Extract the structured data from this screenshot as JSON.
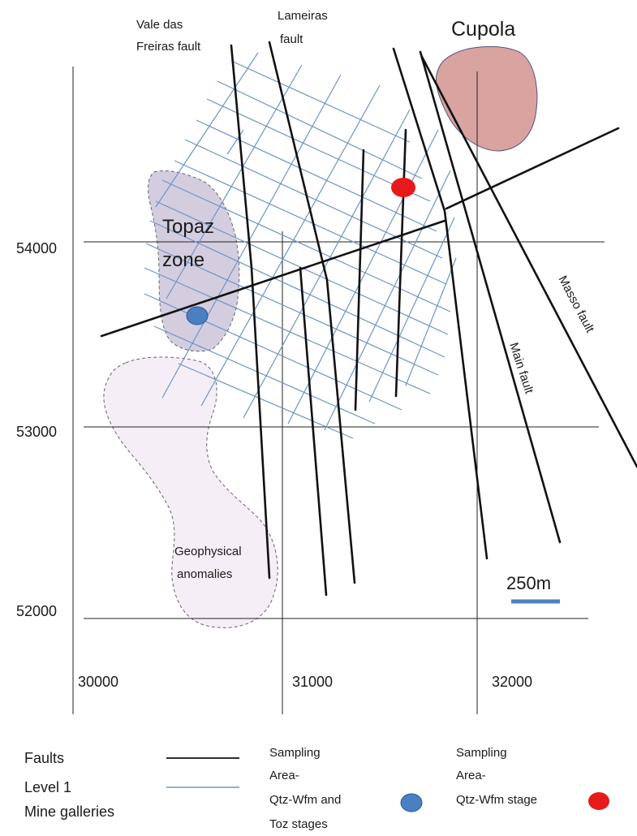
{
  "map": {
    "grid": {
      "northings": [
        "54000",
        "53000",
        "52000"
      ],
      "eastings": [
        "30000",
        "31000",
        "32000"
      ]
    },
    "zones": {
      "topaz_line1": "Topaz",
      "topaz_line2": "zone",
      "cupola": "Cupola",
      "geophysical_line1": "Geophysical",
      "geophysical_line2": "anomalies"
    },
    "faults": {
      "vale_line1": "Vale das",
      "vale_line2": "Freiras fault",
      "lameiras_line1": "Lameiras",
      "lameiras_line2": "fault",
      "main": "Main fault",
      "masso": "Masso fault"
    },
    "scale_bar": {
      "label": "250m",
      "color": "#4f81bd"
    },
    "sample_points": {
      "qtz_wfm_toz": {
        "color": "#4a7fc1"
      },
      "qtz_wfm": {
        "color": "#e8191b"
      }
    },
    "colors": {
      "galleries": "#6f94c4",
      "faults": "#111111",
      "topaz_fill": "#d4cde0",
      "cupola_fill": "#d9a3a0",
      "geophysical_fill": "#f6eef6"
    }
  },
  "legend": {
    "faults_label": "Faults",
    "level1_line1": "Level 1",
    "level1_line2": "Mine galleries",
    "sampling1_line1": "Sampling",
    "sampling1_line2": "Area-",
    "sampling1_line3": "Qtz-Wfm and",
    "sampling1_line4": "Toz stages",
    "sampling2_line1": "Sampling",
    "sampling2_line2": "Area-",
    "sampling2_line3": "Qtz-Wfm stage"
  }
}
